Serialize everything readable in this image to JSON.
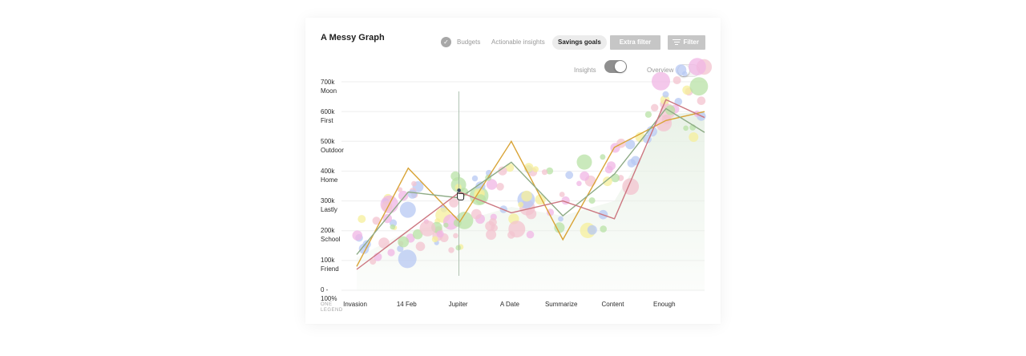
{
  "title": "A Messy Graph",
  "tabs": {
    "budgets": "Budgets",
    "actionable": "Actionable insights",
    "savings": "Savings goals"
  },
  "buttons": {
    "extra_filter": "Extra filter",
    "filter": "Filter"
  },
  "toggles": {
    "insights": {
      "label": "Insights",
      "on": true
    },
    "overview": {
      "label": "Overview",
      "on": false
    }
  },
  "colors": {
    "gold": "#d9a437",
    "green": "#8eab86",
    "red": "#cc7780",
    "area": "#e8f1e6",
    "grid": "#eeeeee",
    "bubble_blue": "#b7c8f3",
    "bubble_green": "#b8e2a6",
    "bubble_pink": "#f3c3cf",
    "bubble_yellow": "#f6ef9b",
    "bubble_magenta": "#f0b5e4"
  },
  "chart_data": {
    "type": "line",
    "title": "A Messy Graph",
    "categories": [
      "Invasion",
      "14 Feb",
      "Jupiter",
      "A Date",
      "Summarize",
      "Content",
      "Enough",
      ""
    ],
    "y_ticks": [
      {
        "value": "700k",
        "label": "Moon"
      },
      {
        "value": "600k",
        "label": "First"
      },
      {
        "value": "500k",
        "label": "Outdoor"
      },
      {
        "value": "400k",
        "label": "Home"
      },
      {
        "value": "300k",
        "label": "Lastly"
      },
      {
        "value": "200k",
        "label": "School"
      },
      {
        "value": "100k",
        "label": "Friend"
      },
      {
        "value": "0 -",
        "label": "100%"
      }
    ],
    "ylim": [
      0,
      700000
    ],
    "legend_label": "ONE LEGEND",
    "series": [
      {
        "name": "gold",
        "color": "#d9a437",
        "values": [
          80000,
          410000,
          230000,
          500000,
          170000,
          480000,
          570000,
          600000
        ]
      },
      {
        "name": "green",
        "color": "#8eab86",
        "values": [
          120000,
          330000,
          310000,
          430000,
          250000,
          390000,
          610000,
          530000
        ]
      },
      {
        "name": "red",
        "color": "#cc7780",
        "values": [
          70000,
          200000,
          330000,
          260000,
          300000,
          240000,
          640000,
          580000
        ]
      }
    ],
    "area": {
      "values": [
        110000,
        200000,
        230000,
        280000,
        250000,
        300000,
        590000,
        600000
      ]
    },
    "cursor": {
      "category": "Jupiter",
      "value": 330000
    }
  }
}
